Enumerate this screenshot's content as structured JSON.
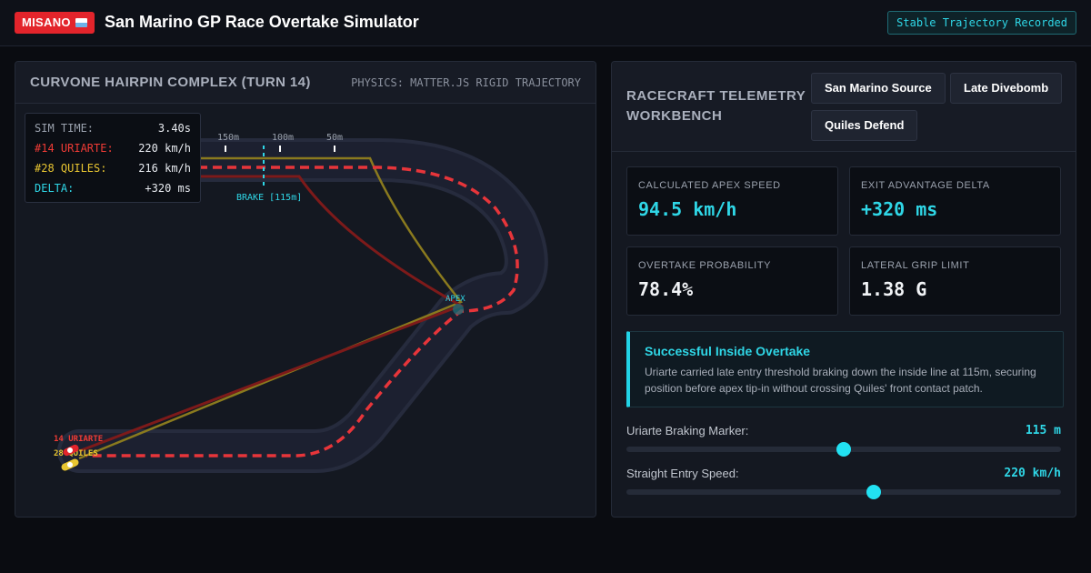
{
  "header": {
    "brand": "MISANO",
    "title": "San Marino GP Race Overtake Simulator",
    "status": "Stable Trajectory Recorded"
  },
  "track_panel": {
    "title": "CURVONE HAIRPIN COMPLEX (TURN 14)",
    "subtitle": "PHYSICS: MATTER.JS RIGID TRAJECTORY",
    "hud": {
      "sim_time_label": "SIM TIME:",
      "sim_time_value": "3.40s",
      "rider1_label": "#14 URIARTE:",
      "rider1_value": "220 km/h",
      "rider2_label": "#28 QUILES:",
      "rider2_value": "216 km/h",
      "delta_label": "DELTA:",
      "delta_value": "+320 ms"
    },
    "markers": [
      "150m",
      "100m",
      "50m"
    ],
    "brake_label": "BRAKE [115m]",
    "apex_label": "APEX",
    "rider1_tag": "14 URIARTE",
    "rider2_tag": "28 QUILES",
    "colors": {
      "rider1": "#ef3b35",
      "rider2": "#e8c531",
      "accent": "#2fd6e6"
    }
  },
  "workbench": {
    "title": "RACECRAFT TELEMETRY WORKBENCH",
    "scenarios": [
      "San Marino Source",
      "Late Divebomb",
      "Quiles Defend"
    ],
    "metrics": [
      {
        "label": "CALCULATED APEX SPEED",
        "value": "94.5 km/h"
      },
      {
        "label": "EXIT ADVANTAGE DELTA",
        "value": "+320 ms"
      },
      {
        "label": "OVERTAKE PROBABILITY",
        "value": "78.4%"
      },
      {
        "label": "LATERAL GRIP LIMIT",
        "value": "1.38 G"
      }
    ],
    "callout": {
      "title": "Successful Inside Overtake",
      "text": "Uriarte carried late entry threshold braking down the inside line at 115m, securing position before apex tip-in without crossing Quiles' front contact patch."
    },
    "sliders": [
      {
        "label": "Uriarte Braking Marker:",
        "value": "115 m",
        "fraction": 0.5
      },
      {
        "label": "Straight Entry Speed:",
        "value": "220 km/h",
        "fraction": 0.57
      }
    ]
  }
}
